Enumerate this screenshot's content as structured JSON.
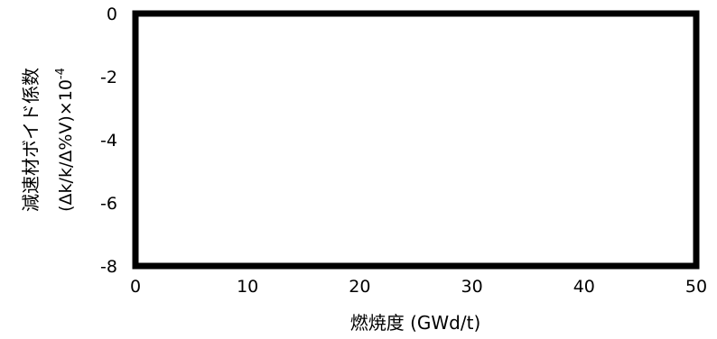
{
  "chart_data": {
    "type": "line",
    "title": "",
    "xlabel": "燃焼度 (GWd/t)",
    "ylabel_line1": "減速材ボイド係数",
    "ylabel_line2": "(Δk/k/Δ%V)×10",
    "ylabel_exponent": "-4",
    "xlim": [
      0,
      50
    ],
    "ylim": [
      -8,
      0
    ],
    "x_ticks": [
      0,
      10,
      20,
      30,
      40,
      50
    ],
    "y_ticks": [
      0,
      -2,
      -4,
      -6,
      -8
    ],
    "grid": false,
    "legend": "none",
    "series": [],
    "colors": {
      "frame": "#000000",
      "text": "#000000",
      "background": "#ffffff"
    }
  }
}
